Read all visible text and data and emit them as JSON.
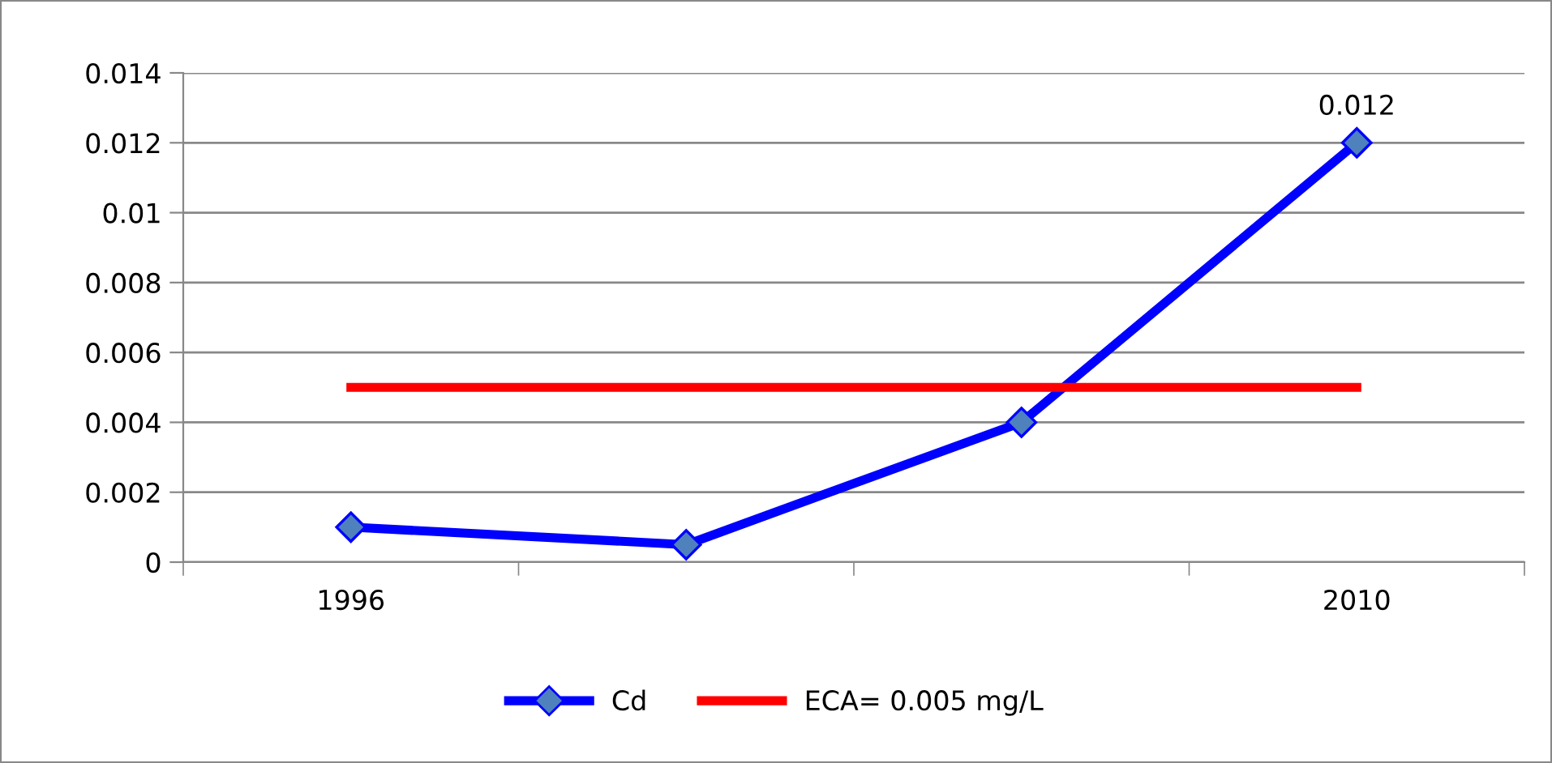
{
  "chart_data": {
    "type": "line",
    "categories": [
      "1996",
      null,
      null,
      "2010"
    ],
    "series": [
      {
        "name": "Cd",
        "color": "#0000ff",
        "values": [
          0.001,
          0.0005,
          0.004,
          0.012
        ],
        "marker": "diamond",
        "value_labels": [
          null,
          null,
          null,
          "0.012"
        ]
      },
      {
        "name": "ECA= 0.005 mg/L",
        "color": "#ff0000",
        "values": [
          0.005,
          0.005,
          0.005,
          0.005
        ],
        "marker": "none"
      }
    ],
    "ylim": [
      0,
      0.014
    ],
    "yticks": [
      0,
      0.002,
      0.004,
      0.006,
      0.008,
      0.01,
      0.012,
      0.014
    ],
    "grid": "y",
    "legend": "bottom"
  }
}
